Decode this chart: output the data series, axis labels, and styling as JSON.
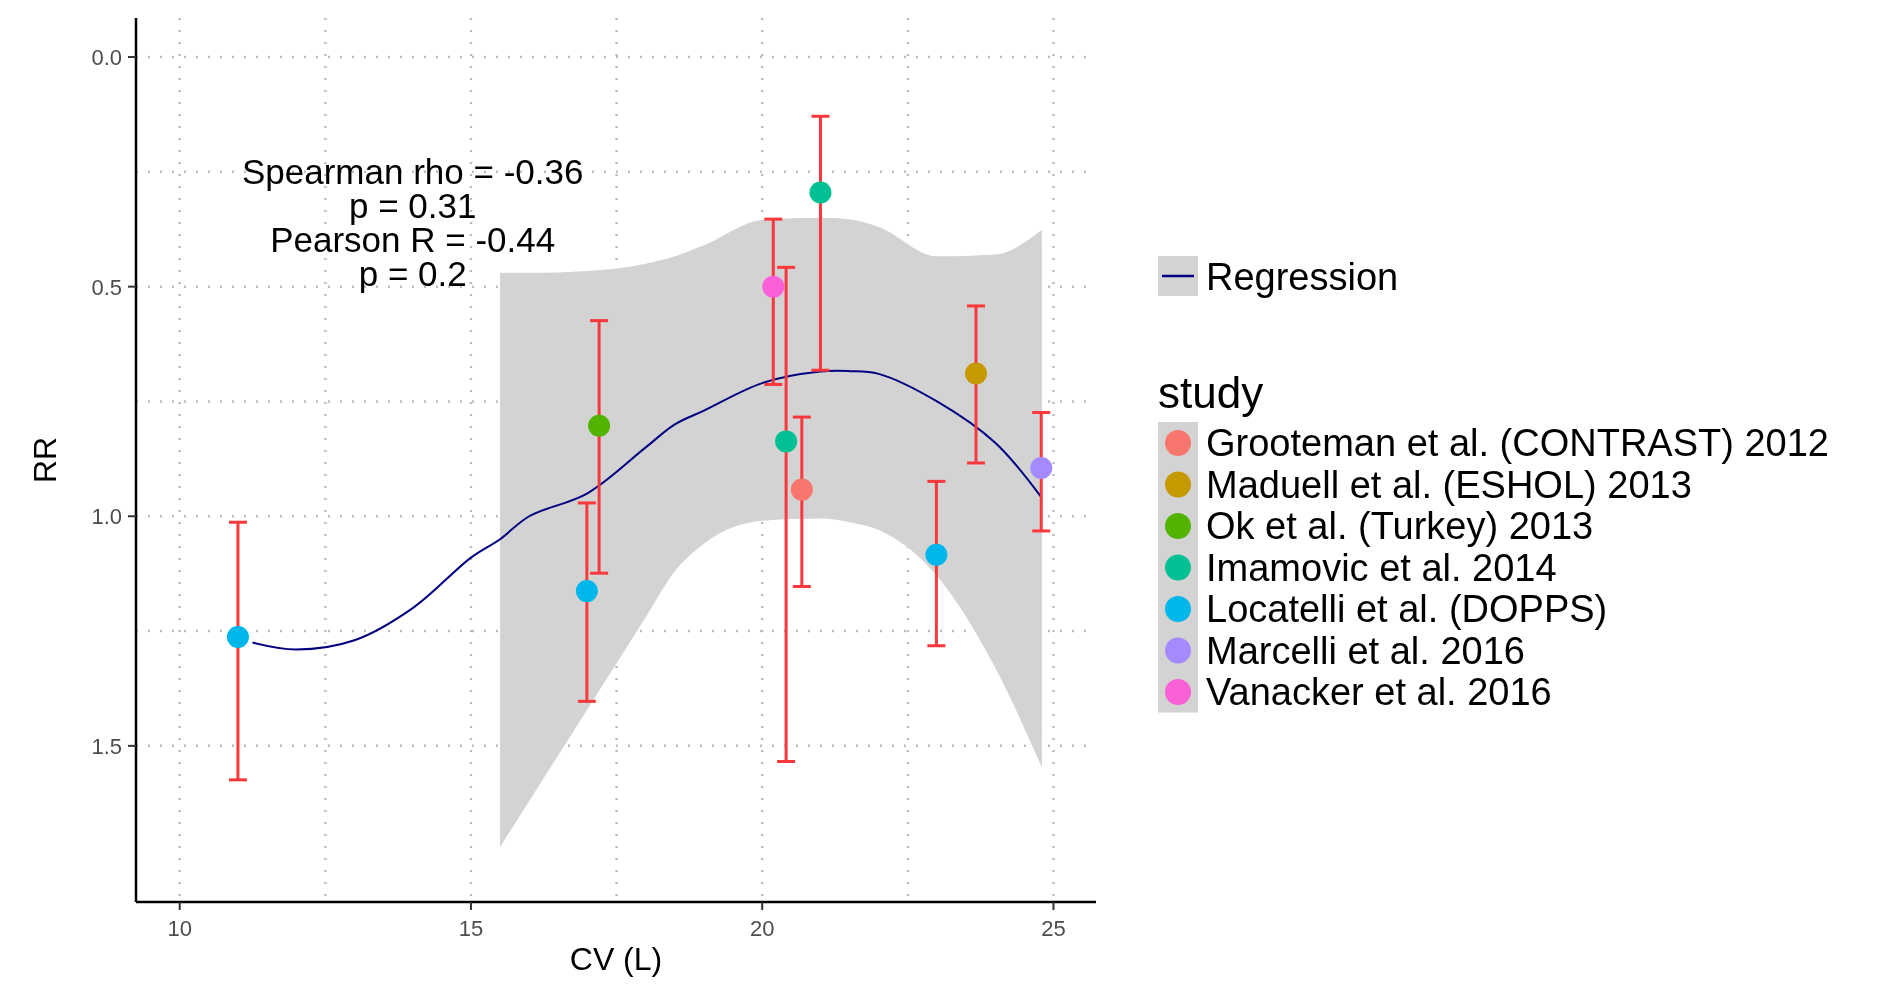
{
  "chart_data": {
    "type": "scatter",
    "xlabel": "CV (L)",
    "ylabel": "RR",
    "legend_title": "study",
    "annotations": [
      "Spearman rho = -0.36",
      "p = 0.31",
      "Pearson R = -0.44",
      "p = 0.2"
    ],
    "xlim": [
      9.25,
      25.73
    ],
    "xticks": [
      10,
      15,
      20,
      25
    ],
    "ylim": [
      1.84,
      -0.085
    ],
    "yticks": [
      {
        "value": 0,
        "label": "0.0"
      },
      0.5,
      {
        "value": 1,
        "label": "1.0"
      },
      1.5
    ],
    "grid": true,
    "legend": "right",
    "marker": "circle",
    "series": [
      {
        "name": "Regression",
        "type": "line",
        "marker": "none",
        "color": "#000080",
        "line_style": "solid",
        "x": [
          11.25,
          12,
          13,
          14,
          15,
          15.5,
          16,
          17,
          18,
          18.5,
          19,
          20,
          21,
          21.5,
          22,
          23,
          24,
          24.8
        ],
        "values": [
          1.275,
          1.29,
          1.27,
          1.2,
          1.09,
          1.05,
          1.0,
          0.95,
          0.85,
          0.8,
          0.77,
          0.71,
          0.685,
          0.684,
          0.69,
          0.75,
          0.84,
          0.96
        ],
        "lower": [
          null,
          null,
          null,
          null,
          null,
          0.47,
          0.47,
          0.466,
          0.45,
          0.434,
          0.41,
          0.355,
          0.35,
          0.353,
          0.37,
          0.434,
          0.43,
          0.376
        ],
        "upper": [
          null,
          null,
          null,
          null,
          null,
          1.72,
          1.62,
          1.42,
          1.22,
          1.12,
          1.06,
          1.01,
          1.005,
          1.013,
          1.03,
          1.13,
          1.33,
          1.547
        ]
      },
      {
        "name": "Grooteman et al. (CONTRAST) 2012",
        "color": "#f8766d",
        "x": [
          20.68
        ],
        "values": [
          0.942
        ],
        "errors": [
          [
            0.784,
            1.153
          ]
        ]
      },
      {
        "name": "Maduell et al. (ESHOL) 2013",
        "color": "#c49a00",
        "x": [
          23.67
        ],
        "values": [
          0.689
        ],
        "errors": [
          [
            0.542,
            0.884
          ]
        ]
      },
      {
        "name": "Ok et al. (Turkey) 2013",
        "color": "#53b400",
        "x": [
          17.2
        ],
        "values": [
          0.803
        ],
        "errors": [
          [
            0.574,
            1.124
          ]
        ]
      },
      {
        "name": "Imamovic et al. 2014",
        "color": "#00c094",
        "x": [
          20.41,
          21.0
        ],
        "values": [
          0.837,
          0.295
        ],
        "errors": [
          [
            0.458,
            1.534
          ],
          [
            0.129,
            0.682
          ]
        ]
      },
      {
        "name": "Locatelli et al. (DOPPS)",
        "color": "#00b6eb",
        "x": [
          11.0,
          16.99,
          22.99
        ],
        "values": [
          1.263,
          1.163,
          1.084
        ],
        "errors": [
          [
            1.013,
            1.574
          ],
          [
            0.971,
            1.403
          ],
          [
            0.924,
            1.282
          ]
        ]
      },
      {
        "name": "Marcelli et al. 2016",
        "color": "#a58aff",
        "x": [
          24.79
        ],
        "values": [
          0.895
        ],
        "errors": [
          [
            0.774,
            1.032
          ]
        ]
      },
      {
        "name": "Vanacker et al. 2016",
        "color": "#fb61d7",
        "x": [
          20.19
        ],
        "values": [
          0.5
        ],
        "errors": [
          [
            0.353,
            0.713
          ]
        ]
      }
    ]
  }
}
